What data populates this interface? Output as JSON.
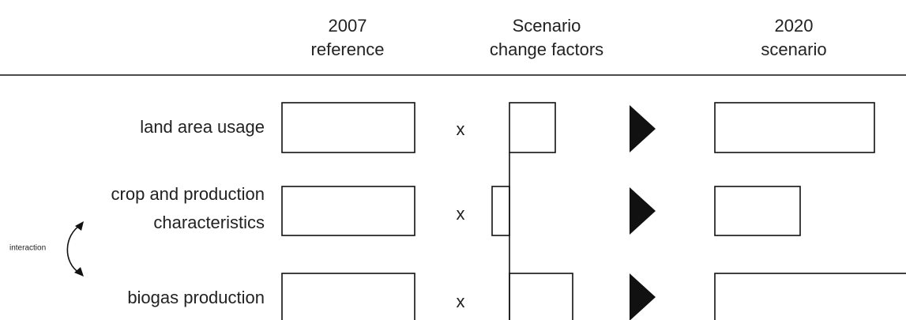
{
  "headers": [
    {
      "lines": [
        "2007",
        "reference"
      ]
    },
    {
      "lines": [
        "Scenario",
        "change factors"
      ]
    },
    {
      "lines": [
        "2020",
        "scenario"
      ]
    }
  ],
  "rows": [
    {
      "label": [
        "land area usage"
      ],
      "operator": "x"
    },
    {
      "label": [
        "crop and production",
        "characteristics"
      ],
      "operator": "x"
    },
    {
      "label": [
        "biogas production"
      ],
      "operator": "x"
    }
  ],
  "interaction": "interaction"
}
